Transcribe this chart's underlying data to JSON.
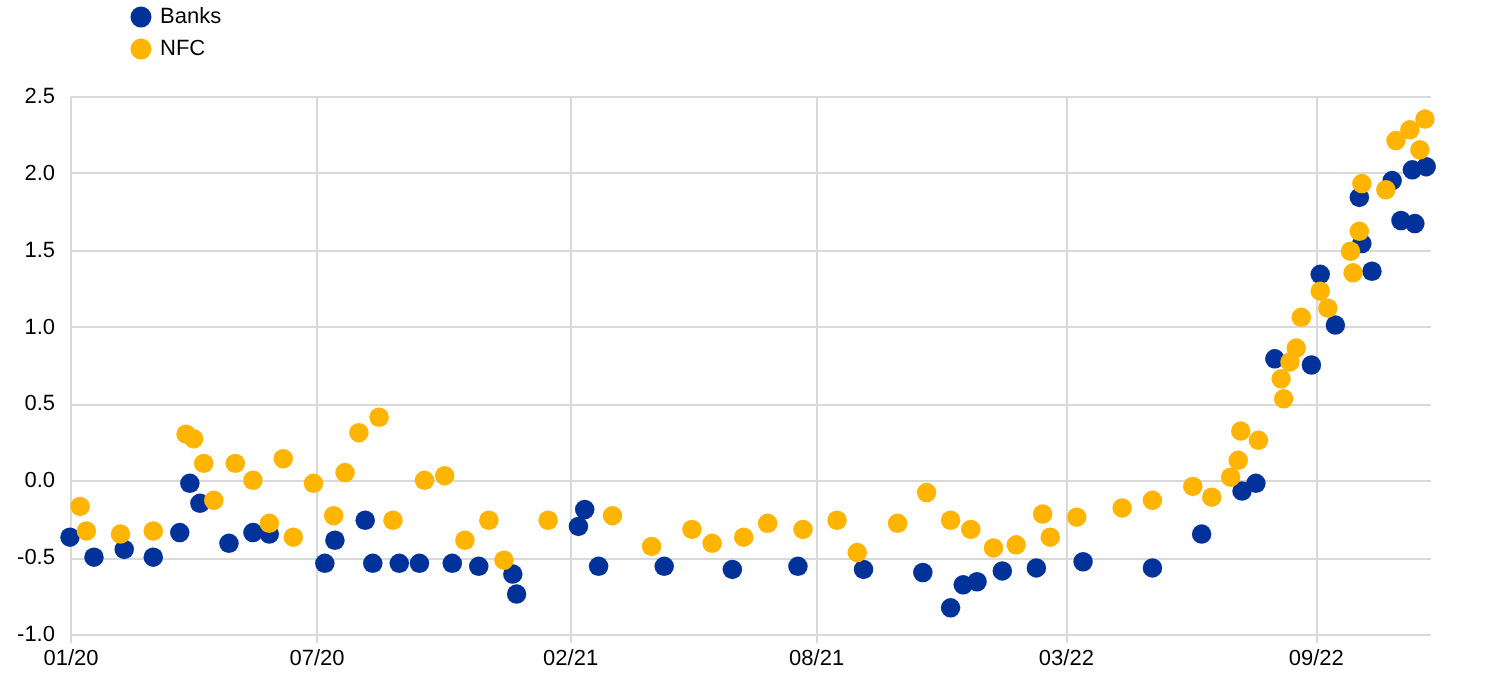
{
  "chart_data": {
    "type": "scatter",
    "marker": "circle",
    "grid": true,
    "legend": "top left",
    "xlim": [
      "2020-01-02",
      "2022-12-15"
    ],
    "xticks": [
      {
        "value": "2020-01-02",
        "label": "01/20"
      },
      {
        "value": "2020-07-15",
        "label": "07/20"
      },
      {
        "value": "2021-02-01",
        "label": "02/21"
      },
      {
        "value": "2021-08-15",
        "label": "08/21"
      },
      {
        "value": "2022-03-01",
        "label": "03/22"
      },
      {
        "value": "2022-09-15",
        "label": "09/22"
      }
    ],
    "ylim": [
      -1.0,
      2.5
    ],
    "yticks": [
      {
        "value": -1,
        "label": "-1.0"
      },
      {
        "value": -0.5,
        "label": "-0.5"
      },
      {
        "value": 0,
        "label": "0.0"
      },
      {
        "value": 0.5,
        "label": "0.5"
      },
      {
        "value": 1,
        "label": "1.0"
      },
      {
        "value": 1.5,
        "label": "1.5"
      },
      {
        "value": 2,
        "label": "2.0"
      },
      {
        "value": 2.5,
        "label": "2.5"
      }
    ],
    "series": [
      {
        "name": "Banks",
        "color": "#003299",
        "x": [
          "2020-01-02",
          "2020-01-21",
          "2020-02-14",
          "2020-03-08",
          "2020-03-29",
          "2020-04-06",
          "2020-04-14",
          "2020-05-07",
          "2020-05-26",
          "2020-06-08",
          "2020-07-22",
          "2020-07-30",
          "2020-08-23",
          "2020-08-29",
          "2020-09-19",
          "2020-10-05",
          "2020-10-31",
          "2020-11-21",
          "2020-12-18",
          "2020-12-21",
          "2021-02-08",
          "2021-02-13",
          "2021-02-24",
          "2021-04-17",
          "2021-06-10",
          "2021-08-01",
          "2021-09-22",
          "2021-11-08",
          "2021-11-30",
          "2021-12-10",
          "2021-12-21",
          "2022-01-10",
          "2022-02-06",
          "2022-03-15",
          "2022-05-09",
          "2022-06-17",
          "2022-07-19",
          "2022-07-30",
          "2022-08-14",
          "2022-09-12",
          "2022-09-19",
          "2022-10-01",
          "2022-10-20",
          "2022-10-22",
          "2022-10-30",
          "2022-11-15",
          "2022-11-22",
          "2022-12-03",
          "2022-12-01",
          "2022-12-12"
        ],
        "values": [
          -0.37,
          -0.5,
          -0.45,
          -0.5,
          -0.34,
          -0.02,
          -0.15,
          -0.41,
          -0.34,
          -0.35,
          -0.54,
          -0.39,
          -0.26,
          -0.54,
          -0.54,
          -0.54,
          -0.54,
          -0.56,
          -0.61,
          -0.74,
          -0.3,
          -0.19,
          -0.56,
          -0.56,
          -0.58,
          -0.56,
          -0.58,
          -0.6,
          -0.83,
          -0.68,
          -0.66,
          -0.59,
          -0.57,
          -0.53,
          -0.57,
          -0.35,
          -0.07,
          -0.02,
          0.79,
          0.75,
          1.34,
          1.01,
          1.84,
          1.54,
          1.36,
          1.95,
          1.69,
          1.67,
          2.02,
          2.04
        ]
      },
      {
        "name": "NFC",
        "color": "#ffb400",
        "x": [
          "2020-01-10",
          "2020-01-15",
          "2020-02-11",
          "2020-03-08",
          "2020-04-03",
          "2020-04-09",
          "2020-04-17",
          "2020-04-25",
          "2020-05-12",
          "2020-05-26",
          "2020-06-08",
          "2020-06-19",
          "2020-06-27",
          "2020-07-13",
          "2020-07-29",
          "2020-08-07",
          "2020-08-18",
          "2020-09-03",
          "2020-09-14",
          "2020-10-09",
          "2020-10-25",
          "2020-11-10",
          "2020-11-29",
          "2020-12-11",
          "2021-01-15",
          "2021-03-07",
          "2021-04-07",
          "2021-05-09",
          "2021-05-25",
          "2021-06-19",
          "2021-07-08",
          "2021-08-05",
          "2021-09-01",
          "2021-09-17",
          "2021-10-19",
          "2021-11-11",
          "2021-11-30",
          "2021-12-16",
          "2022-01-03",
          "2022-01-21",
          "2022-02-11",
          "2022-02-17",
          "2022-03-10",
          "2022-04-15",
          "2022-05-09",
          "2022-06-10",
          "2022-06-25",
          "2022-07-10",
          "2022-07-16",
          "2022-07-18",
          "2022-08-01",
          "2022-08-19",
          "2022-08-21",
          "2022-08-26",
          "2022-08-31",
          "2022-09-04",
          "2022-09-19",
          "2022-09-25",
          "2022-10-13",
          "2022-10-15",
          "2022-10-20",
          "2022-10-22",
          "2022-11-10",
          "2022-11-18",
          "2022-11-29",
          "2022-12-07",
          "2022-12-11"
        ],
        "values": [
          -0.17,
          -0.33,
          -0.35,
          -0.33,
          0.3,
          0.27,
          0.11,
          -0.13,
          0.11,
          0,
          -0.28,
          0.14,
          -0.37,
          -0.02,
          -0.23,
          0.05,
          0.31,
          0.41,
          -0.26,
          0,
          0.03,
          -0.39,
          -0.26,
          -0.52,
          -0.26,
          -0.23,
          -0.43,
          -0.32,
          -0.41,
          -0.37,
          -0.28,
          -0.32,
          -0.26,
          -0.47,
          -0.28,
          -0.08,
          -0.26,
          -0.32,
          -0.44,
          -0.42,
          -0.22,
          -0.37,
          -0.24,
          -0.18,
          -0.13,
          -0.04,
          -0.11,
          0.02,
          0.13,
          0.32,
          0.26,
          0.66,
          0.53,
          0.77,
          0.86,
          1.06,
          1.23,
          1.12,
          1.49,
          1.35,
          1.62,
          1.93,
          1.89,
          2.21,
          2.28,
          2.15,
          2.35
        ]
      }
    ]
  }
}
